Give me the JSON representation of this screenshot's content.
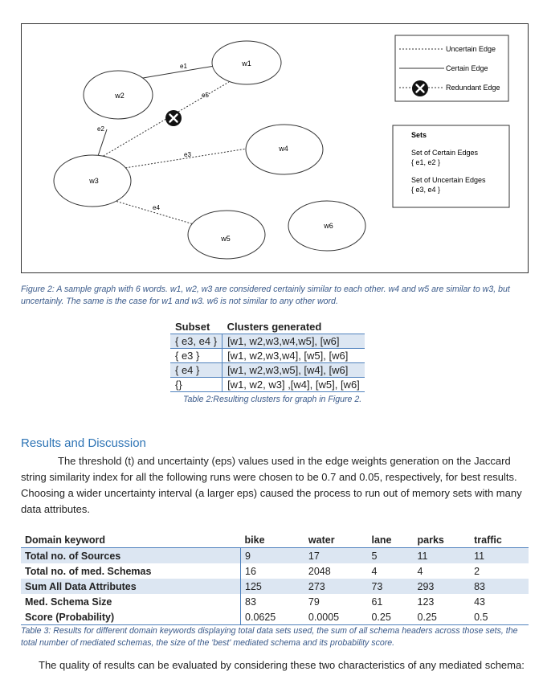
{
  "figure": {
    "nodes": [
      {
        "id": "w1",
        "label": "w1"
      },
      {
        "id": "w2",
        "label": "w2"
      },
      {
        "id": "w3",
        "label": "w3"
      },
      {
        "id": "w4",
        "label": "w4"
      },
      {
        "id": "w5",
        "label": "w5"
      },
      {
        "id": "w6",
        "label": "w6"
      }
    ],
    "edges": [
      {
        "label": "e1",
        "from": "w2",
        "to": "w1",
        "type": "certain"
      },
      {
        "label": "e2",
        "from": "w2",
        "to": "w3",
        "type": "certain"
      },
      {
        "label": "e3",
        "from": "w3",
        "to": "w4",
        "type": "uncertain"
      },
      {
        "label": "e4",
        "from": "w3",
        "to": "w5",
        "type": "uncertain"
      },
      {
        "label": "e5",
        "from": "w3",
        "to": "w1",
        "type": "redundant"
      }
    ],
    "legend": {
      "uncertain": "Uncertain Edge",
      "certain": "Certain Edge",
      "redundant": "Redundant Edge"
    },
    "sets": {
      "title": "Sets",
      "certain_label": "Set of Certain Edges",
      "certain_value": "{ e1, e2 }",
      "uncertain_label": "Set of Uncertain Edges",
      "uncertain_value": "{ e3, e4 }"
    },
    "caption": "Figure 2: A sample graph with 6 words. w1, w2, w3 are considered certainly similar to each other. w4 and w5 are similar to w3, but uncertainly. The same is the case for w1 and w3. w6 is not similar to any other word."
  },
  "table2": {
    "headers": [
      "Subset",
      "Clusters generated"
    ],
    "rows": [
      [
        "{ e3, e4 }",
        "[w1, w2,w3,w4,w5], [w6]"
      ],
      [
        "{ e3 }",
        "[w1, w2,w3,w4], [w5], [w6]"
      ],
      [
        "{ e4 }",
        "[w1, w2,w3,w5], [w4], [w6]"
      ],
      [
        "{}",
        "[w1, w2, w3] ,[w4], [w5], [w6]"
      ]
    ],
    "caption": "Table 2:Resulting clusters for graph in Figure 2."
  },
  "section": {
    "heading": "Results and Discussion",
    "paragraph": "The threshold (t) and uncertainty (eps) values used in the edge weights generation on the Jaccard string similarity index for all the following runs were chosen to be 0.7 and 0.05, respectively, for best results. Choosing a wider uncertainty interval (a larger eps) caused the process to run out of memory sets with many data attributes."
  },
  "table3": {
    "headers": [
      "Domain keyword",
      "bike",
      "water",
      "lane",
      "parks",
      "traffic"
    ],
    "rows": [
      [
        "Total no. of Sources",
        "9",
        "17",
        "5",
        "11",
        "11"
      ],
      [
        "Total no. of med. Schemas",
        "16",
        "2048",
        "4",
        "4",
        "2"
      ],
      [
        "Sum All Data Attributes",
        "125",
        "273",
        "73",
        "293",
        "83"
      ],
      [
        "Med. Schema Size",
        "83",
        "79",
        "61",
        "123",
        "43"
      ],
      [
        "Score (Probability)",
        "0.0625",
        "0.0005",
        "0.25",
        "0.25",
        "0.5"
      ]
    ],
    "caption": "Table 3: Results for different domain keywords displaying total data sets used, the sum of all schema headers across those sets, the total number of mediated schemas, the size of the 'best' mediated schema and its probability score."
  },
  "closing": "The quality of results can be evaluated by considering these two characteristics of any mediated schema:"
}
